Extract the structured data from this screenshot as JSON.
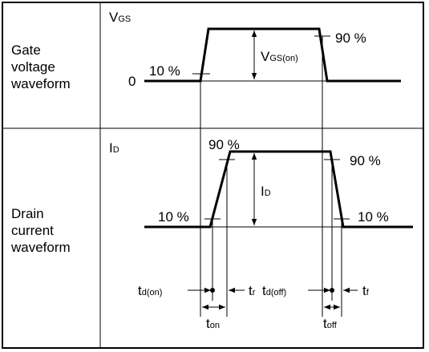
{
  "rows": [
    {
      "label": [
        "Gate",
        "voltage",
        "waveform"
      ]
    },
    {
      "label": [
        "Drain",
        "current",
        "waveform"
      ]
    }
  ],
  "gate": {
    "axis": {
      "main": "V",
      "sub": "GS"
    },
    "high": "90 %",
    "low": "10 %",
    "zero": "0",
    "amplitude": {
      "main": "V",
      "sub": "GS(on)"
    }
  },
  "drain": {
    "axis": {
      "main": "I",
      "sub": "D"
    },
    "rise_high": "90 %",
    "fall_high": "90 %",
    "rise_low": "10 %",
    "fall_low": "10 %",
    "amplitude": {
      "main": "I",
      "sub": "D"
    }
  },
  "timing": {
    "td_on": {
      "main": "t",
      "sub": "d(on)"
    },
    "tr": {
      "main": "t",
      "sub": "r"
    },
    "td_off": {
      "main": "t",
      "sub": "d(off)"
    },
    "tf": {
      "main": "t",
      "sub": "f"
    },
    "ton": {
      "main": "t",
      "sub": "on"
    },
    "toff": {
      "main": "t",
      "sub": "off"
    }
  }
}
